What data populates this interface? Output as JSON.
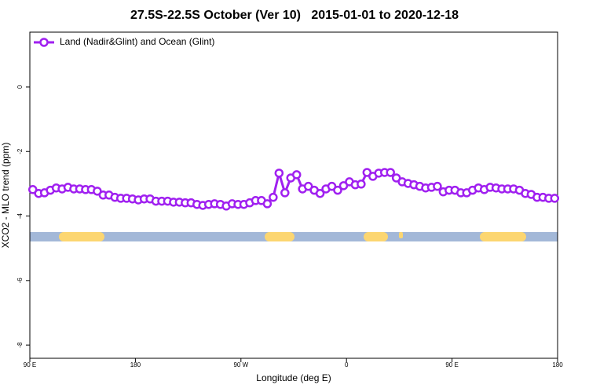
{
  "chart_data": {
    "type": "line",
    "title": "27.5S-22.5S October (Ver 10)   2015-01-01 to 2020-12-18",
    "xlabel": "Longitude (deg E)",
    "ylabel": "XCO2 - MLO trend (ppm)",
    "x": [
      92.5,
      97.5,
      102.5,
      107.5,
      112.5,
      117.5,
      122.5,
      127.5,
      132.5,
      137.5,
      142.5,
      147.5,
      152.5,
      157.5,
      162.5,
      167.5,
      172.5,
      177.5,
      182.5,
      187.5,
      192.5,
      197.5,
      202.5,
      207.5,
      212.5,
      217.5,
      222.5,
      227.5,
      232.5,
      237.5,
      242.5,
      247.5,
      252.5,
      257.5,
      262.5,
      267.5,
      272.5,
      277.5,
      282.5,
      287.5,
      292.5,
      297.5,
      302.5,
      307.5,
      312.5,
      317.5,
      322.5,
      327.5,
      332.5,
      337.5,
      342.5,
      347.5,
      352.5,
      357.5,
      362.5,
      367.5,
      372.5,
      377.5,
      382.5,
      387.5,
      392.5,
      397.5,
      402.5,
      407.5,
      412.5,
      417.5,
      422.5,
      427.5,
      432.5,
      437.5,
      442.5,
      447.5,
      452.5,
      457.5,
      462.5,
      467.5,
      472.5,
      477.5,
      482.5,
      487.5,
      492.5,
      497.5,
      502.5,
      507.5,
      512.5,
      517.5,
      522.5,
      527.5,
      532.5,
      537.5
    ],
    "series": [
      {
        "name": "Land (Nadir&Glint) and Ocean (Glint)",
        "color": "#a020f0",
        "values": [
          -3.18,
          -3.3,
          -3.28,
          -3.2,
          -3.13,
          -3.16,
          -3.11,
          -3.16,
          -3.16,
          -3.18,
          -3.18,
          -3.23,
          -3.35,
          -3.35,
          -3.42,
          -3.45,
          -3.45,
          -3.47,
          -3.5,
          -3.47,
          -3.47,
          -3.54,
          -3.54,
          -3.54,
          -3.57,
          -3.57,
          -3.59,
          -3.59,
          -3.64,
          -3.67,
          -3.64,
          -3.62,
          -3.64,
          -3.69,
          -3.62,
          -3.64,
          -3.64,
          -3.59,
          -3.52,
          -3.52,
          -3.62,
          -3.42,
          -2.67,
          -3.28,
          -2.82,
          -2.72,
          -3.16,
          -3.08,
          -3.2,
          -3.3,
          -3.16,
          -3.08,
          -3.2,
          -3.06,
          -2.94,
          -3.03,
          -3.01,
          -2.65,
          -2.77,
          -2.67,
          -2.65,
          -2.65,
          -2.82,
          -2.94,
          -2.99,
          -3.03,
          -3.08,
          -3.13,
          -3.11,
          -3.08,
          -3.25,
          -3.2,
          -3.2,
          -3.28,
          -3.28,
          -3.2,
          -3.13,
          -3.18,
          -3.11,
          -3.13,
          -3.16,
          -3.16,
          -3.16,
          -3.2,
          -3.3,
          -3.33,
          -3.42,
          -3.42,
          -3.45,
          -3.45
        ]
      }
    ],
    "xlim": [
      90,
      540
    ],
    "xticks": [
      {
        "value": 90,
        "label": "90 E"
      },
      180,
      {
        "value": 270,
        "label": "90 W"
      },
      {
        "value": 360,
        "label": "0"
      },
      {
        "value": 450,
        "label": "90 E"
      },
      {
        "value": 540,
        "label": "180"
      }
    ],
    "ylim": [
      -8.41,
      1.7
    ],
    "yticks": [
      -8,
      -6,
      -4,
      -2,
      0
    ],
    "legend": "top-left"
  }
}
